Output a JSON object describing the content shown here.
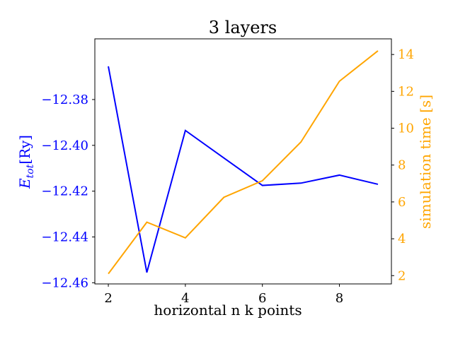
{
  "chart_data": {
    "type": "line",
    "title": "3 layers",
    "xlabel": "horizontal n k points",
    "y1label": "E_tot [Ry]",
    "y1label_main": "E",
    "y1label_sub": "tot",
    "y1label_unit": "[Ry]",
    "y2label": "simulation time [s]",
    "xlim": [
      1.65,
      9.35
    ],
    "y1lim": [
      -12.4605,
      -12.3535
    ],
    "y2lim": [
      1.55,
      14.85
    ],
    "xticks": [
      2,
      4,
      6,
      8
    ],
    "xtick_labels": [
      "2",
      "4",
      "6",
      "8"
    ],
    "y1ticks": [
      -12.38,
      -12.4,
      -12.42,
      -12.44,
      -12.46
    ],
    "y1tick_labels": [
      "−12.38",
      "−12.40",
      "−12.42",
      "−12.44",
      "−12.46"
    ],
    "y2ticks": [
      2,
      4,
      6,
      8,
      10,
      12,
      14
    ],
    "y2tick_labels": [
      "2",
      "4",
      "6",
      "8",
      "10",
      "12",
      "14"
    ],
    "grid": false,
    "x": [
      2,
      3,
      4,
      5,
      6,
      7,
      8,
      9
    ],
    "series": [
      {
        "axis": "left",
        "color": "#0000ff",
        "values": [
          -12.3655,
          -12.4555,
          -12.3935,
          -12.4055,
          -12.4175,
          -12.4165,
          -12.413,
          -12.417
        ]
      },
      {
        "axis": "right",
        "color": "#ffa500",
        "values": [
          2.1,
          4.9,
          4.05,
          6.25,
          7.15,
          9.25,
          12.55,
          14.2
        ]
      }
    ]
  }
}
